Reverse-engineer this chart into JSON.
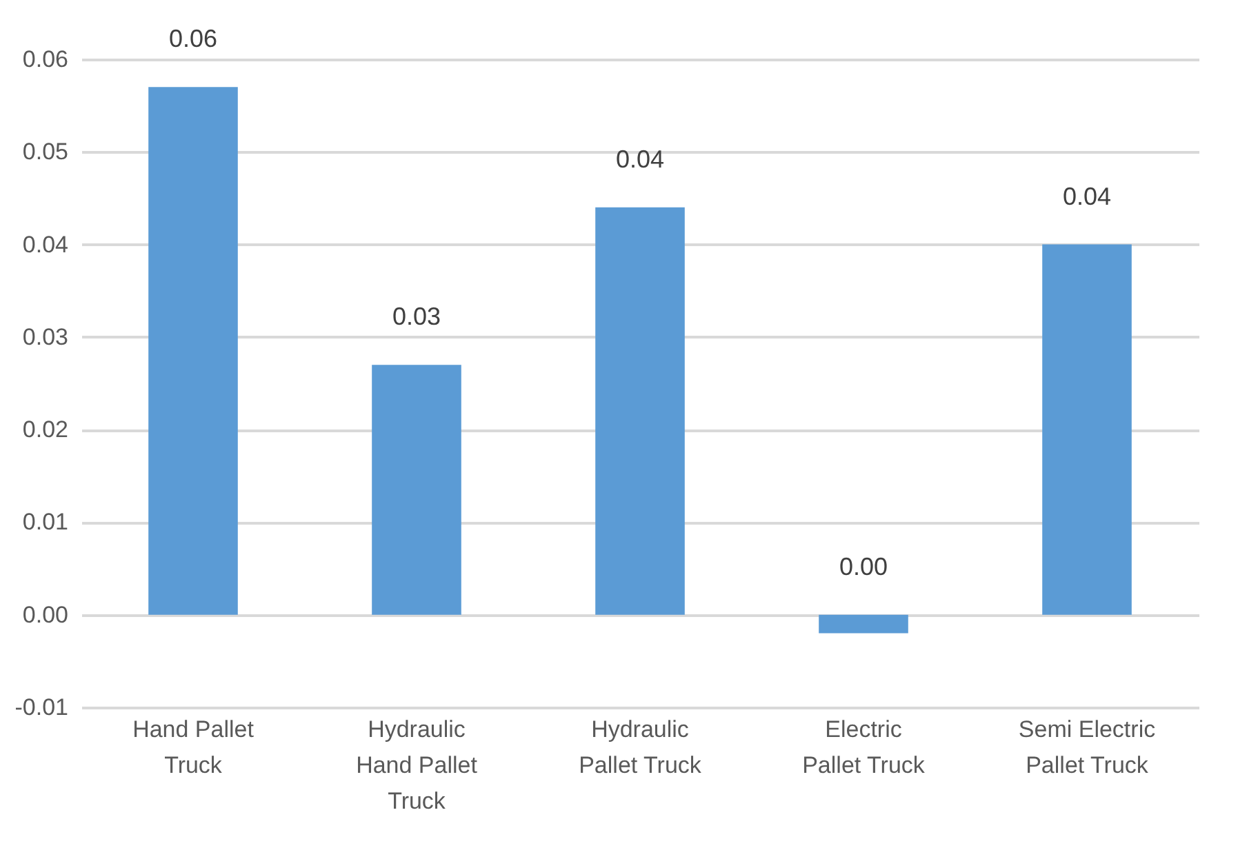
{
  "chart_data": {
    "type": "bar",
    "categories": [
      "Hand Pallet Truck",
      "Hydraulic Hand Pallet Truck",
      "Hydraulic Pallet Truck",
      "Electric Pallet Truck",
      "Semi Electric Pallet Truck"
    ],
    "values": [
      0.057,
      0.027,
      0.044,
      -0.002,
      0.04
    ],
    "value_labels": [
      "0.06",
      "0.03",
      "0.04",
      "0.00",
      "0.04"
    ],
    "color": "#5b9bd5",
    "ylim": [
      -0.01,
      0.06
    ],
    "yticks": [
      {
        "value": -0.01,
        "label": "-0.01"
      },
      {
        "value": 0,
        "label": "0.00"
      },
      0.01,
      0.02,
      0.03,
      0.04,
      0.05,
      0.06
    ],
    "grid": "y"
  }
}
